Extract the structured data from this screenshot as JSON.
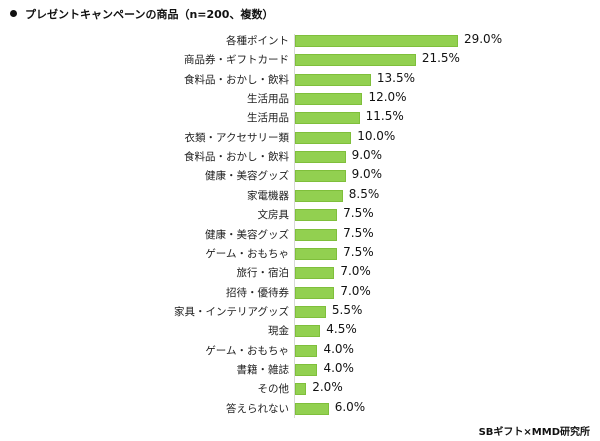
{
  "title": "プレゼントキャンペーンの商品（n=200、複数）",
  "source": "SBギフト×MMD研究所",
  "colors": {
    "bar": "#92d050",
    "axis": "#d9d9d9"
  },
  "chart_data": {
    "type": "bar",
    "orientation": "horizontal",
    "title": "プレゼントキャンペーンの商品（n=200、複数）",
    "xlabel": "",
    "ylabel": "",
    "unit": "%",
    "grid": false,
    "legend": null,
    "categories": [
      "各種ポイント",
      "商品券・ギフトカード",
      "食料品・おかし・飲料",
      "生活用品",
      "生活用品",
      "衣類・アクセサリー類",
      "食料品・おかし・飲料",
      "健康・美容グッズ",
      "家電機器",
      "文房具",
      "健康・美容グッズ",
      "ゲーム・おもちゃ",
      "旅行・宿泊",
      "招待・優待券",
      "家具・インテリアグッズ",
      "現金",
      "ゲーム・おもちゃ",
      "書籍・雑誌",
      "その他",
      "答えられない"
    ],
    "values": [
      29.0,
      21.5,
      13.5,
      12.0,
      11.5,
      10.0,
      9.0,
      9.0,
      8.5,
      7.5,
      7.5,
      7.5,
      7.0,
      7.0,
      5.5,
      4.5,
      4.0,
      4.0,
      2.0,
      6.0
    ],
    "value_labels": [
      "29.0%",
      "21.5%",
      "13.5%",
      "12.0%",
      "11.5%",
      "10.0%",
      "9.0%",
      "9.0%",
      "8.5%",
      "7.5%",
      "7.5%",
      "7.5%",
      "7.0%",
      "7.0%",
      "5.5%",
      "4.5%",
      "4.0%",
      "4.0%",
      "2.0%",
      "6.0%"
    ],
    "xlim": [
      0,
      35
    ]
  }
}
